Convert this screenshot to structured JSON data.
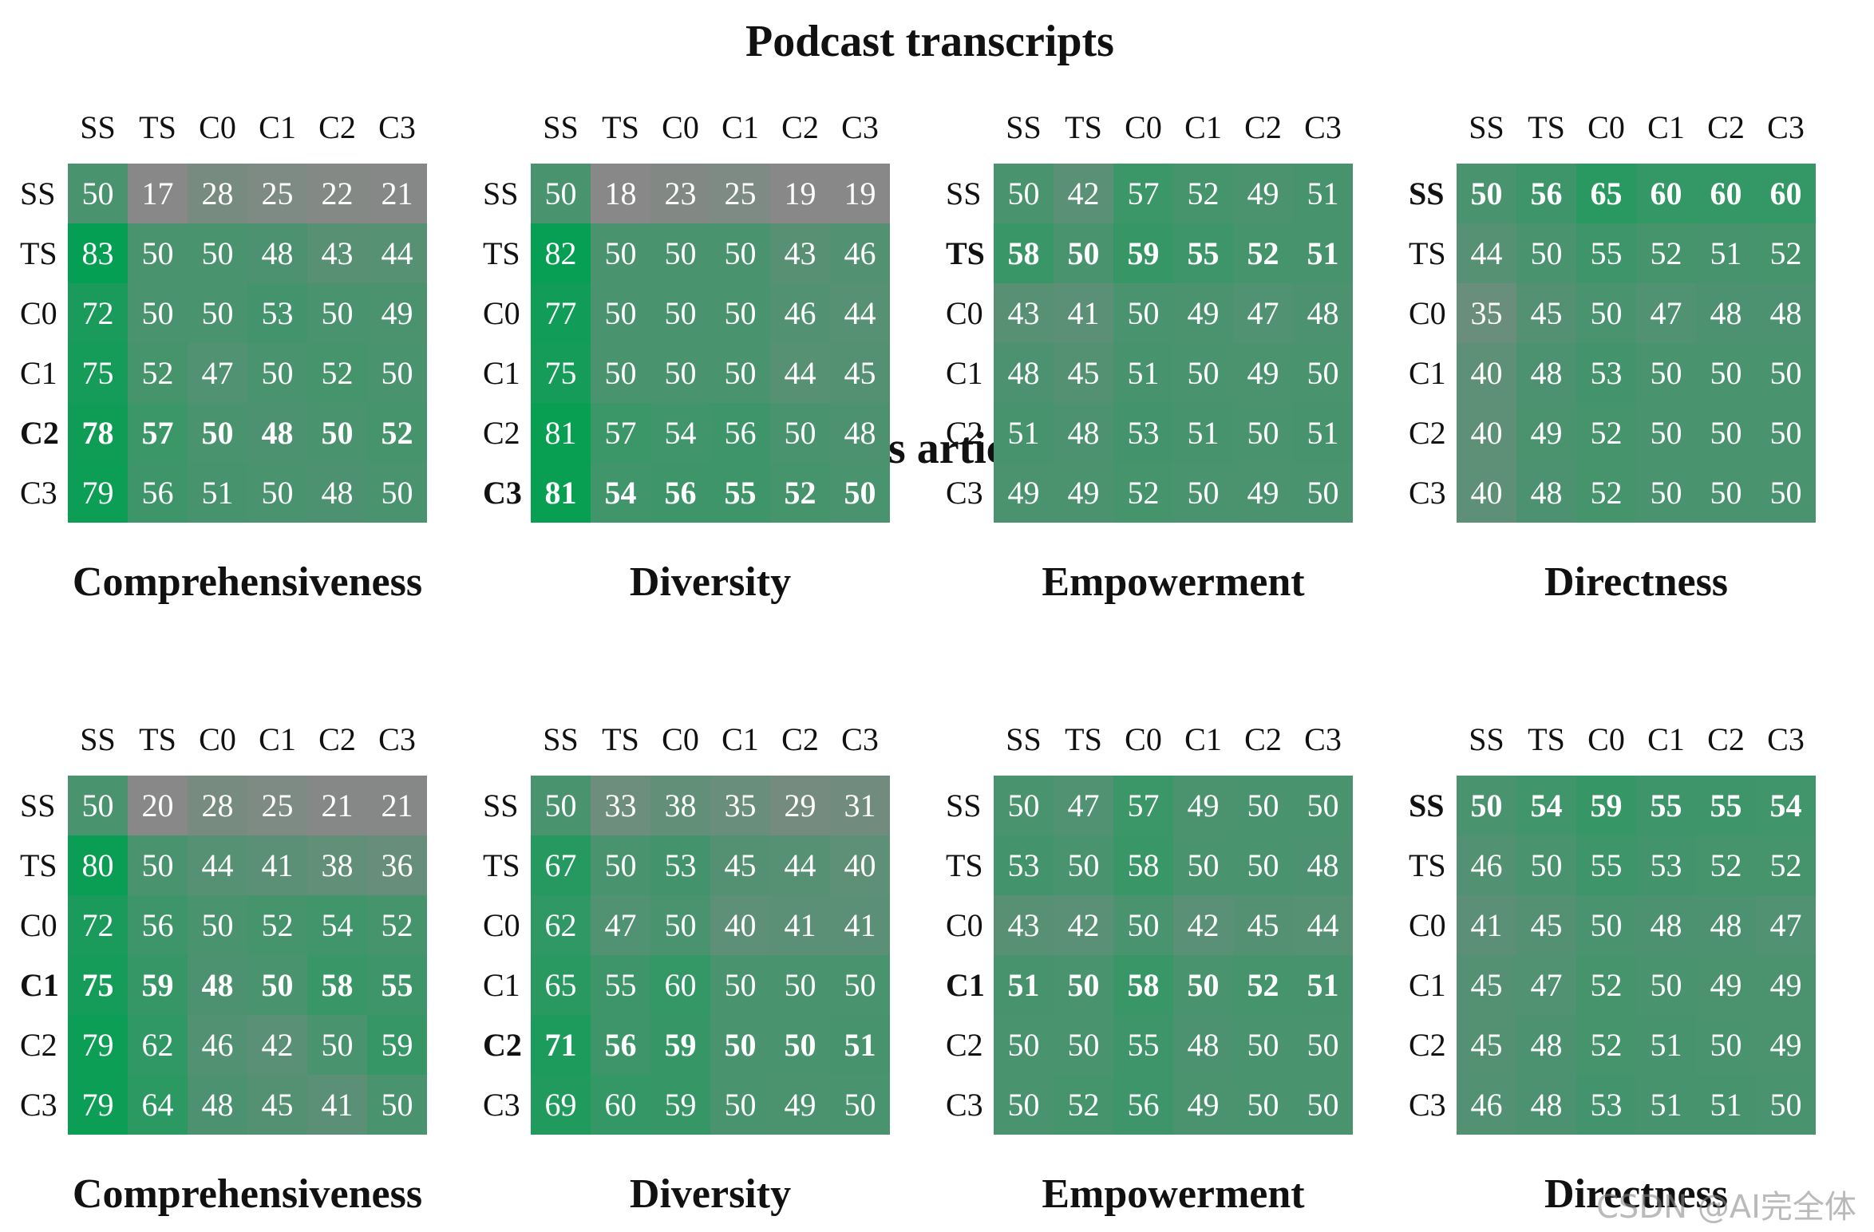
{
  "sections": [
    {
      "title": "Podcast transcripts"
    },
    {
      "title": "News articles"
    }
  ],
  "watermark": "CSDN @AI完全体",
  "colors": {
    "gray": "#888888",
    "green": "#00a050"
  },
  "chart_data": [
    {
      "type": "heatmap",
      "section": "Podcast transcripts",
      "title": "Comprehensiveness",
      "x_labels": [
        "SS",
        "TS",
        "C0",
        "C1",
        "C2",
        "C3"
      ],
      "y_labels": [
        "SS",
        "TS",
        "C0",
        "C1",
        "C2",
        "C3"
      ],
      "bold_row": 4,
      "values": [
        [
          50,
          17,
          28,
          25,
          22,
          21
        ],
        [
          83,
          50,
          50,
          48,
          43,
          44
        ],
        [
          72,
          50,
          50,
          53,
          50,
          49
        ],
        [
          75,
          52,
          47,
          50,
          52,
          50
        ],
        [
          78,
          57,
          50,
          48,
          50,
          52
        ],
        [
          79,
          56,
          51,
          50,
          48,
          50
        ]
      ]
    },
    {
      "type": "heatmap",
      "section": "Podcast transcripts",
      "title": "Diversity",
      "x_labels": [
        "SS",
        "TS",
        "C0",
        "C1",
        "C2",
        "C3"
      ],
      "y_labels": [
        "SS",
        "TS",
        "C0",
        "C1",
        "C2",
        "C3"
      ],
      "bold_row": 5,
      "values": [
        [
          50,
          18,
          23,
          25,
          19,
          19
        ],
        [
          82,
          50,
          50,
          50,
          43,
          46
        ],
        [
          77,
          50,
          50,
          50,
          46,
          44
        ],
        [
          75,
          50,
          50,
          50,
          44,
          45
        ],
        [
          81,
          57,
          54,
          56,
          50,
          48
        ],
        [
          81,
          54,
          56,
          55,
          52,
          50
        ]
      ]
    },
    {
      "type": "heatmap",
      "section": "Podcast transcripts",
      "title": "Empowerment",
      "x_labels": [
        "SS",
        "TS",
        "C0",
        "C1",
        "C2",
        "C3"
      ],
      "y_labels": [
        "SS",
        "TS",
        "C0",
        "C1",
        "C2",
        "C3"
      ],
      "bold_row": 1,
      "values": [
        [
          50,
          42,
          57,
          52,
          49,
          51
        ],
        [
          58,
          50,
          59,
          55,
          52,
          51
        ],
        [
          43,
          41,
          50,
          49,
          47,
          48
        ],
        [
          48,
          45,
          51,
          50,
          49,
          50
        ],
        [
          51,
          48,
          53,
          51,
          50,
          51
        ],
        [
          49,
          49,
          52,
          50,
          49,
          50
        ]
      ]
    },
    {
      "type": "heatmap",
      "section": "Podcast transcripts",
      "title": "Directness",
      "x_labels": [
        "SS",
        "TS",
        "C0",
        "C1",
        "C2",
        "C3"
      ],
      "y_labels": [
        "SS",
        "TS",
        "C0",
        "C1",
        "C2",
        "C3"
      ],
      "bold_row": 0,
      "values": [
        [
          50,
          56,
          65,
          60,
          60,
          60
        ],
        [
          44,
          50,
          55,
          52,
          51,
          52
        ],
        [
          35,
          45,
          50,
          47,
          48,
          48
        ],
        [
          40,
          48,
          53,
          50,
          50,
          50
        ],
        [
          40,
          49,
          52,
          50,
          50,
          50
        ],
        [
          40,
          48,
          52,
          50,
          50,
          50
        ]
      ]
    },
    {
      "type": "heatmap",
      "section": "News articles",
      "title": "Comprehensiveness",
      "x_labels": [
        "SS",
        "TS",
        "C0",
        "C1",
        "C2",
        "C3"
      ],
      "y_labels": [
        "SS",
        "TS",
        "C0",
        "C1",
        "C2",
        "C3"
      ],
      "bold_row": 3,
      "values": [
        [
          50,
          20,
          28,
          25,
          21,
          21
        ],
        [
          80,
          50,
          44,
          41,
          38,
          36
        ],
        [
          72,
          56,
          50,
          52,
          54,
          52
        ],
        [
          75,
          59,
          48,
          50,
          58,
          55
        ],
        [
          79,
          62,
          46,
          42,
          50,
          59
        ],
        [
          79,
          64,
          48,
          45,
          41,
          50
        ]
      ]
    },
    {
      "type": "heatmap",
      "section": "News articles",
      "title": "Diversity",
      "x_labels": [
        "SS",
        "TS",
        "C0",
        "C1",
        "C2",
        "C3"
      ],
      "y_labels": [
        "SS",
        "TS",
        "C0",
        "C1",
        "C2",
        "C3"
      ],
      "bold_row": 4,
      "values": [
        [
          50,
          33,
          38,
          35,
          29,
          31
        ],
        [
          67,
          50,
          53,
          45,
          44,
          40
        ],
        [
          62,
          47,
          50,
          40,
          41,
          41
        ],
        [
          65,
          55,
          60,
          50,
          50,
          50
        ],
        [
          71,
          56,
          59,
          50,
          50,
          51
        ],
        [
          69,
          60,
          59,
          50,
          49,
          50
        ]
      ]
    },
    {
      "type": "heatmap",
      "section": "News articles",
      "title": "Empowerment",
      "x_labels": [
        "SS",
        "TS",
        "C0",
        "C1",
        "C2",
        "C3"
      ],
      "y_labels": [
        "SS",
        "TS",
        "C0",
        "C1",
        "C2",
        "C3"
      ],
      "bold_row": 3,
      "values": [
        [
          50,
          47,
          57,
          49,
          50,
          50
        ],
        [
          53,
          50,
          58,
          50,
          50,
          48
        ],
        [
          43,
          42,
          50,
          42,
          45,
          44
        ],
        [
          51,
          50,
          58,
          50,
          52,
          51
        ],
        [
          50,
          50,
          55,
          48,
          50,
          50
        ],
        [
          50,
          52,
          56,
          49,
          50,
          50
        ]
      ]
    },
    {
      "type": "heatmap",
      "section": "News articles",
      "title": "Directness",
      "x_labels": [
        "SS",
        "TS",
        "C0",
        "C1",
        "C2",
        "C3"
      ],
      "y_labels": [
        "SS",
        "TS",
        "C0",
        "C1",
        "C2",
        "C3"
      ],
      "bold_row": 0,
      "values": [
        [
          50,
          54,
          59,
          55,
          55,
          54
        ],
        [
          46,
          50,
          55,
          53,
          52,
          52
        ],
        [
          41,
          45,
          50,
          48,
          48,
          47
        ],
        [
          45,
          47,
          52,
          50,
          49,
          49
        ],
        [
          45,
          48,
          52,
          51,
          50,
          49
        ],
        [
          46,
          48,
          53,
          51,
          51,
          50
        ]
      ]
    }
  ]
}
